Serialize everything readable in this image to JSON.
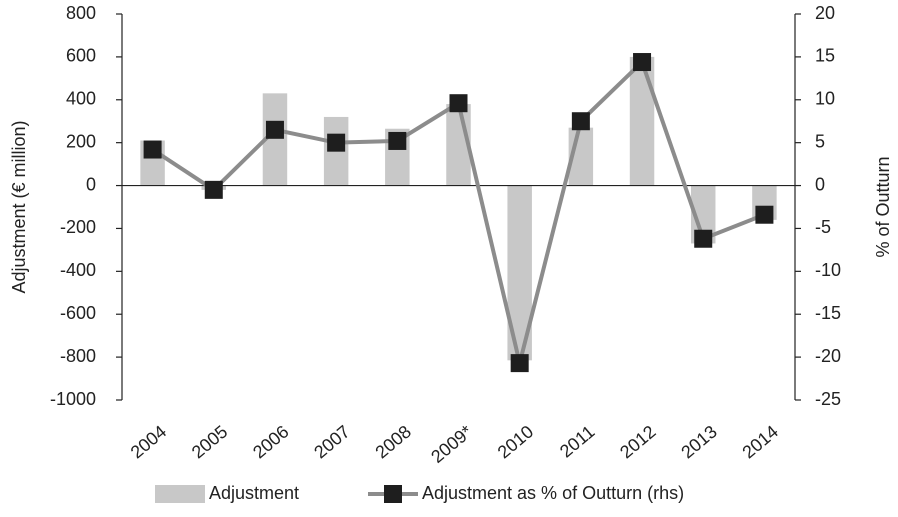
{
  "chart_data": {
    "type": "bar",
    "categories": [
      "2004",
      "2005",
      "2006",
      "2007",
      "2008",
      "2009*",
      "2010",
      "2011",
      "2012",
      "2013",
      "2014"
    ],
    "series": [
      {
        "name": "Adjustment",
        "color": "#c8c8c8",
        "type": "bar",
        "axis": "y",
        "values": [
          210,
          -20,
          430,
          320,
          265,
          380,
          -815,
          270,
          600,
          -270,
          -160
        ]
      },
      {
        "name": "Adjustment as % of Outturn (rhs)",
        "color": "#8c8c8c",
        "marker_color": "#1e1e1e",
        "type": "line",
        "axis": "y2",
        "values": [
          4.2,
          -0.5,
          6.5,
          5,
          5.2,
          9.6,
          -20.7,
          7.5,
          14.4,
          -6.2,
          -3.4
        ]
      }
    ],
    "y_label": "Adjustment (€ million)",
    "y2_label": "% of Outturn",
    "ylim": [
      -1000,
      800
    ],
    "yticks": [
      -1000,
      -800,
      -600,
      -400,
      -200,
      0,
      200,
      400,
      600,
      800
    ],
    "y2lim": [
      -25,
      20
    ],
    "y2ticks": [
      -25,
      -20,
      -15,
      -10,
      -5,
      0,
      5,
      10,
      15,
      20
    ],
    "grid": false,
    "legend": "bottom"
  }
}
